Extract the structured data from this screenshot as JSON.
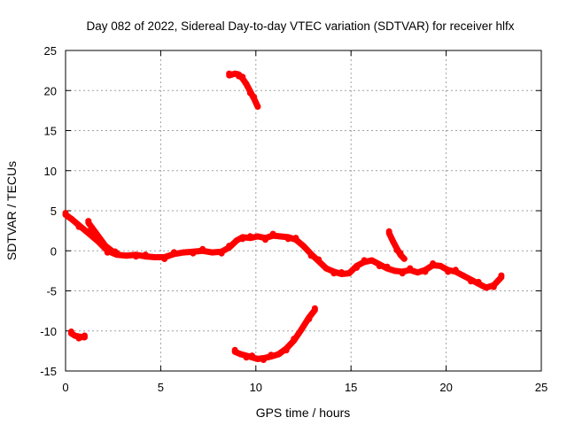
{
  "chart_data": {
    "type": "line",
    "title": "Day 082 of 2022, Sidereal Day-to-day VTEC variation (SDTVAR) for receiver hlfx",
    "xlabel": "GPS time / hours",
    "ylabel": "SDTVAR / TECUs",
    "xlim": [
      0,
      25
    ],
    "ylim": [
      -15,
      25
    ],
    "xticks": [
      0,
      5,
      10,
      15,
      20,
      25
    ],
    "yticks": [
      -15,
      -10,
      -5,
      0,
      5,
      10,
      15,
      20,
      25
    ],
    "grid": true,
    "color": "#ff0000",
    "series": [
      {
        "name": "main-trace",
        "x": [
          0.0,
          0.3,
          0.7,
          1.2,
          1.7,
          2.2,
          2.7,
          3.2,
          3.7,
          4.2,
          4.7,
          5.2,
          5.7,
          6.2,
          6.7,
          7.2,
          7.7,
          8.2,
          8.6,
          9.0,
          9.3,
          9.7,
          10.1,
          10.5,
          10.9,
          11.3,
          11.7,
          12.1,
          12.5,
          12.9,
          13.3,
          13.7,
          14.1,
          14.5,
          14.9,
          15.3,
          15.7,
          16.1,
          16.5,
          16.9,
          17.3,
          17.7,
          18.1,
          18.5,
          18.9,
          19.3,
          19.7,
          20.1,
          20.5,
          20.9,
          21.3,
          21.7,
          22.1,
          22.5,
          22.9
        ],
        "y": [
          4.5,
          4.0,
          3.2,
          2.2,
          1.2,
          0.0,
          -0.5,
          -0.6,
          -0.5,
          -0.7,
          -0.8,
          -0.8,
          -0.4,
          -0.2,
          -0.1,
          0.0,
          -0.2,
          -0.1,
          0.4,
          1.3,
          1.7,
          1.6,
          1.8,
          1.6,
          1.9,
          1.8,
          1.7,
          1.4,
          0.6,
          -0.4,
          -1.3,
          -2.2,
          -2.6,
          -2.9,
          -2.8,
          -1.9,
          -1.4,
          -1.2,
          -1.7,
          -2.2,
          -2.5,
          -2.6,
          -2.4,
          -2.7,
          -2.4,
          -1.8,
          -1.9,
          -2.4,
          -2.6,
          -3.1,
          -3.6,
          -4.1,
          -4.6,
          -4.3,
          -3.3
        ]
      },
      {
        "name": "early-arc",
        "x": [
          1.2,
          1.6,
          2.1,
          2.6
        ],
        "y": [
          3.5,
          2.2,
          0.6,
          -0.3
        ]
      },
      {
        "name": "high-arc",
        "x": [
          8.6,
          8.9,
          9.1,
          9.3,
          9.5,
          9.7,
          9.9,
          10.1
        ],
        "y": [
          21.9,
          22.1,
          22.0,
          21.5,
          20.8,
          19.9,
          19.0,
          18.0
        ]
      },
      {
        "name": "low-arc",
        "x": [
          8.9,
          9.2,
          9.5,
          9.8,
          10.1,
          10.4,
          10.8,
          11.2,
          11.6,
          12.0,
          12.4,
          12.8,
          13.1
        ],
        "y": [
          -12.6,
          -12.9,
          -13.1,
          -13.3,
          -13.5,
          -13.4,
          -13.2,
          -12.9,
          -12.2,
          -11.2,
          -9.8,
          -8.3,
          -7.4
        ]
      },
      {
        "name": "low-short-arc",
        "x": [
          0.3,
          0.5,
          0.7,
          1.0
        ],
        "y": [
          -10.3,
          -10.6,
          -10.7,
          -10.8
        ]
      },
      {
        "name": "late-arc",
        "x": [
          17.0,
          17.2,
          17.4,
          17.6,
          17.8
        ],
        "y": [
          2.2,
          1.2,
          0.3,
          -0.5,
          -1.0
        ]
      }
    ]
  }
}
